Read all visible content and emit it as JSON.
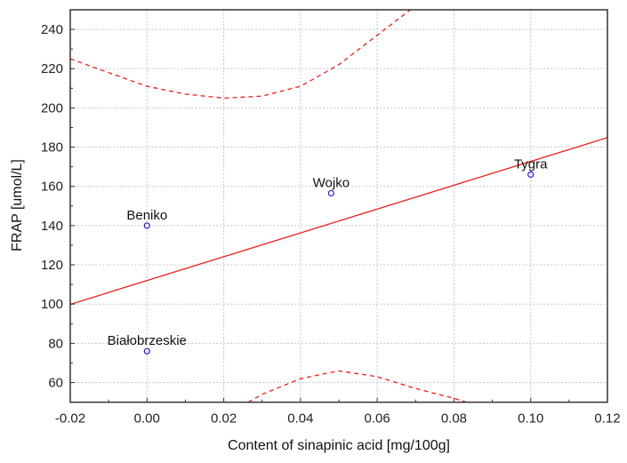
{
  "chart_data": {
    "type": "scatter",
    "title": "",
    "xlabel": "Content of sinapinic acid [mg/100g]",
    "ylabel": "FRAP [umol/L]",
    "xlim": [
      -0.02,
      0.12
    ],
    "ylim": [
      50,
      250
    ],
    "xticks": [
      "-0.02",
      "0.00",
      "0.02",
      "0.04",
      "0.06",
      "0.08",
      "0.10",
      "0.12"
    ],
    "xtick_values": [
      -0.02,
      0,
      0.02,
      0.04,
      0.06,
      0.08,
      0.1,
      0.12
    ],
    "yticks": [
      "60",
      "80",
      "100",
      "120",
      "140",
      "160",
      "180",
      "200",
      "220",
      "240"
    ],
    "ytick_values": [
      60,
      80,
      100,
      120,
      140,
      160,
      180,
      200,
      220,
      240
    ],
    "grid": true,
    "points": [
      {
        "label": "Beniko",
        "x": 0.0,
        "y": 140
      },
      {
        "label": "Białobrzeskie",
        "x": 0.0,
        "y": 76
      },
      {
        "label": "Wojko",
        "x": 0.048,
        "y": 156.5
      },
      {
        "label": "Tygra",
        "x": 0.1,
        "y": 166
      }
    ],
    "regression": {
      "intercept": 112,
      "slope": 607
    },
    "confidence_band": {
      "x": [
        -0.02,
        -0.01,
        0,
        0.01,
        0.02,
        0.03,
        0.04,
        0.05,
        0.06,
        0.07,
        0.08,
        0.09,
        0.1,
        0.11,
        0.12
      ],
      "upper": [
        225,
        218,
        211,
        207,
        205,
        206,
        211,
        222,
        237,
        252,
        269,
        287,
        306,
        325,
        345
      ],
      "lower": [
        -25,
        -6,
        13,
        29,
        43,
        54,
        62,
        66,
        63,
        57,
        52,
        46,
        35,
        22,
        8
      ]
    },
    "colors": {
      "points": "#2222dd",
      "line": "#e8201c",
      "band": "#e8201c",
      "grid": "#c8c8c8"
    }
  }
}
